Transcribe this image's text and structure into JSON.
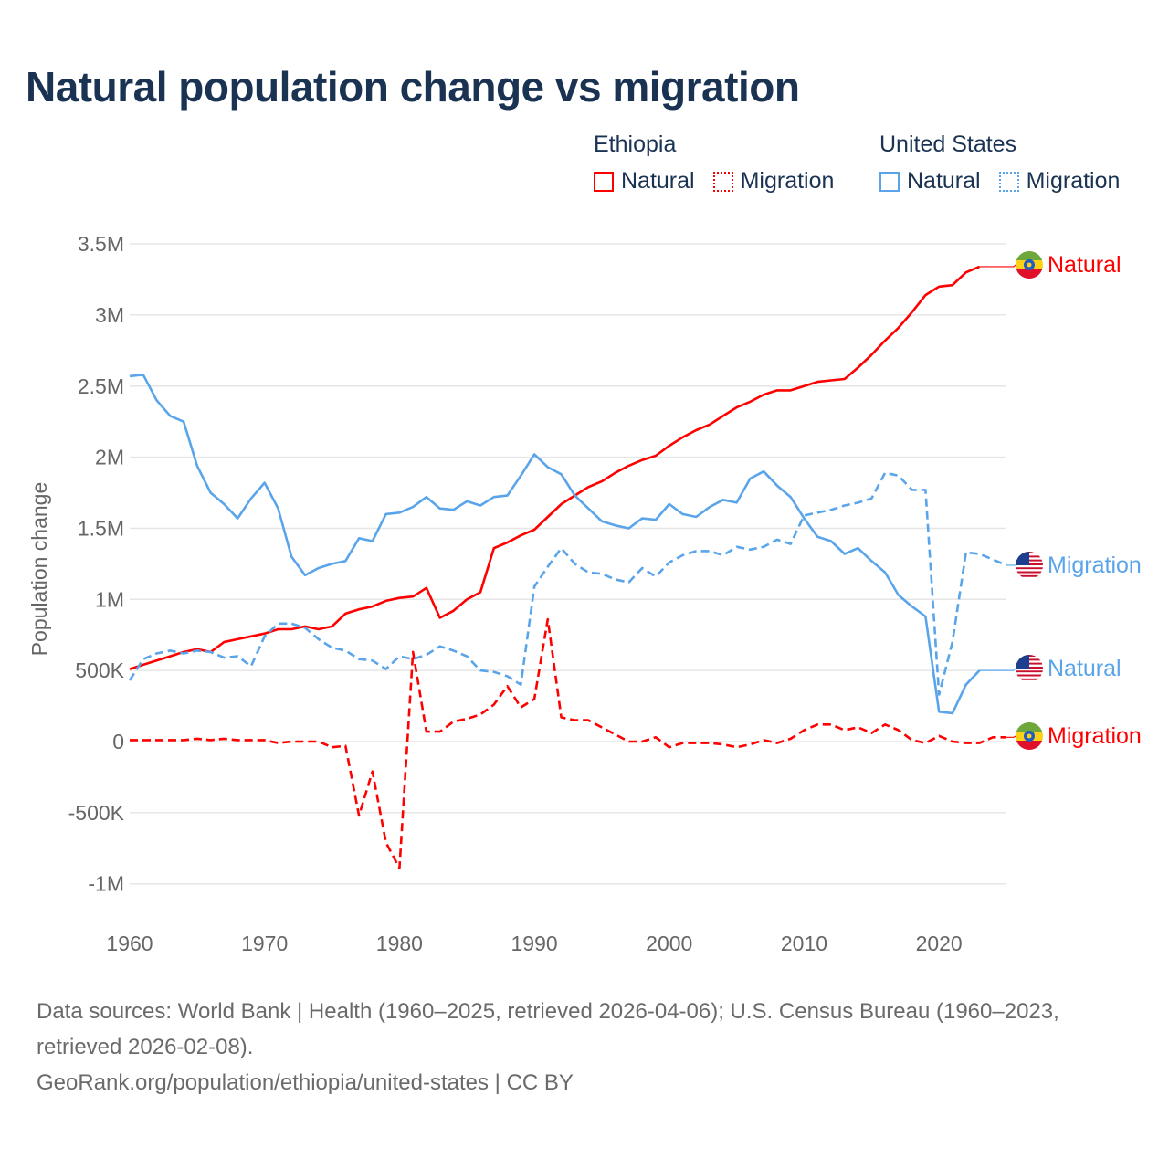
{
  "title": "Natural population change vs migration",
  "legend": [
    {
      "country": "Ethiopia",
      "items": [
        {
          "label": "Natural",
          "style": "solid"
        },
        {
          "label": "Migration",
          "style": "dotted"
        }
      ],
      "color": "#ff0000"
    },
    {
      "country": "United States",
      "items": [
        {
          "label": "Natural",
          "style": "solid"
        },
        {
          "label": "Migration",
          "style": "dotted"
        }
      ],
      "color": "#5aa5ea"
    }
  ],
  "footer": {
    "sources": "Data sources: World Bank | Health (1960–2025, retrieved 2026-04-06); U.S. Census Bureau (1960–2023, retrieved 2026-02-08).",
    "link": "GeoRank.org/population/ethiopia/united-states | CC BY"
  },
  "chart_data": {
    "type": "line",
    "title": "Natural population change vs migration",
    "ylabel": "Population change",
    "xlabel": "",
    "xlim": [
      1960,
      2025
    ],
    "ylim": [
      -1000000,
      3500000
    ],
    "x_ticks": [
      1960,
      1970,
      1980,
      1990,
      2000,
      2010,
      2020
    ],
    "x_tick_labels": [
      "1960",
      "1970",
      "1980",
      "1990",
      "2000",
      "2010",
      "2020"
    ],
    "y_ticks": [
      3500000,
      3000000,
      2500000,
      2000000,
      1500000,
      1000000,
      500000,
      0,
      -500000,
      -1000000
    ],
    "y_tick_labels": [
      "3.5M",
      "3M",
      "2.5M",
      "2M",
      "1.5M",
      "1M",
      "500K",
      "0",
      "-500K",
      "-1M"
    ],
    "grid": true,
    "series": [
      {
        "name": "Ethiopia Natural",
        "end_label": "Natural",
        "country": "ethiopia",
        "color": "#ff0000",
        "dash": false,
        "start": 1960,
        "values_m": [
          0.51,
          0.54,
          0.57,
          0.6,
          0.63,
          0.65,
          0.63,
          0.7,
          0.72,
          0.74,
          0.76,
          0.79,
          0.79,
          0.81,
          0.79,
          0.81,
          0.9,
          0.93,
          0.95,
          0.99,
          1.01,
          1.02,
          1.08,
          0.87,
          0.92,
          1.0,
          1.05,
          1.36,
          1.4,
          1.45,
          1.49,
          1.58,
          1.67,
          1.73,
          1.79,
          1.83,
          1.89,
          1.94,
          1.98,
          2.01,
          2.08,
          2.14,
          2.19,
          2.23,
          2.29,
          2.35,
          2.39,
          2.44,
          2.47,
          2.47,
          2.5,
          2.53,
          2.54,
          2.55,
          2.63,
          2.72,
          2.82,
          2.91,
          3.02,
          3.14,
          3.2,
          3.21,
          3.3,
          3.34
        ]
      },
      {
        "name": "Ethiopia Migration",
        "end_label": "Migration",
        "country": "ethiopia",
        "color": "#ff0000",
        "dash": true,
        "start": 1960,
        "values_m": [
          0.01,
          0.01,
          0.01,
          0.01,
          0.01,
          0.02,
          0.01,
          0.02,
          0.01,
          0.01,
          0.01,
          -0.01,
          0.0,
          0.0,
          0.0,
          -0.04,
          -0.03,
          -0.52,
          -0.21,
          -0.71,
          -0.89,
          0.63,
          0.07,
          0.07,
          0.14,
          0.16,
          0.19,
          0.26,
          0.39,
          0.24,
          0.3,
          0.86,
          0.17,
          0.15,
          0.15,
          0.1,
          0.05,
          0.0,
          0.0,
          0.03,
          -0.04,
          -0.01,
          -0.01,
          -0.01,
          -0.02,
          -0.04,
          -0.02,
          0.01,
          -0.01,
          0.02,
          0.08,
          0.12,
          0.12,
          0.08,
          0.1,
          0.06,
          0.12,
          0.08,
          0.01,
          -0.01,
          0.04,
          0.0,
          -0.01,
          -0.01,
          0.03,
          0.03
        ]
      },
      {
        "name": "United States Natural",
        "end_label": "Natural",
        "country": "usa",
        "color": "#5aa5ea",
        "dash": false,
        "start": 1960,
        "values_m": [
          2.57,
          2.58,
          2.4,
          2.29,
          2.25,
          1.94,
          1.75,
          1.67,
          1.57,
          1.71,
          1.82,
          1.64,
          1.3,
          1.17,
          1.22,
          1.25,
          1.27,
          1.43,
          1.41,
          1.6,
          1.61,
          1.65,
          1.72,
          1.64,
          1.63,
          1.69,
          1.66,
          1.72,
          1.73,
          1.87,
          2.02,
          1.93,
          1.88,
          1.73,
          1.64,
          1.55,
          1.52,
          1.5,
          1.57,
          1.56,
          1.67,
          1.6,
          1.58,
          1.65,
          1.7,
          1.68,
          1.85,
          1.9,
          1.8,
          1.72,
          1.57,
          1.44,
          1.41,
          1.32,
          1.36,
          1.27,
          1.19,
          1.03,
          0.95,
          0.88,
          0.21,
          0.2,
          0.4,
          0.5
        ]
      },
      {
        "name": "United States Migration",
        "end_label": "Migration",
        "country": "usa",
        "color": "#5aa5ea",
        "dash": true,
        "start": 1960,
        "values_m": [
          0.43,
          0.58,
          0.62,
          0.64,
          0.62,
          0.64,
          0.63,
          0.59,
          0.6,
          0.53,
          0.74,
          0.83,
          0.83,
          0.8,
          0.72,
          0.66,
          0.64,
          0.58,
          0.57,
          0.51,
          0.6,
          0.58,
          0.61,
          0.67,
          0.64,
          0.6,
          0.5,
          0.49,
          0.46,
          0.4,
          1.09,
          1.23,
          1.36,
          1.25,
          1.19,
          1.18,
          1.14,
          1.12,
          1.22,
          1.16,
          1.26,
          1.31,
          1.34,
          1.34,
          1.31,
          1.37,
          1.35,
          1.37,
          1.42,
          1.39,
          1.59,
          1.61,
          1.63,
          1.66,
          1.68,
          1.71,
          1.89,
          1.87,
          1.77,
          1.77,
          0.33,
          0.7,
          1.33,
          1.32,
          1.28,
          1.24
        ]
      }
    ]
  }
}
